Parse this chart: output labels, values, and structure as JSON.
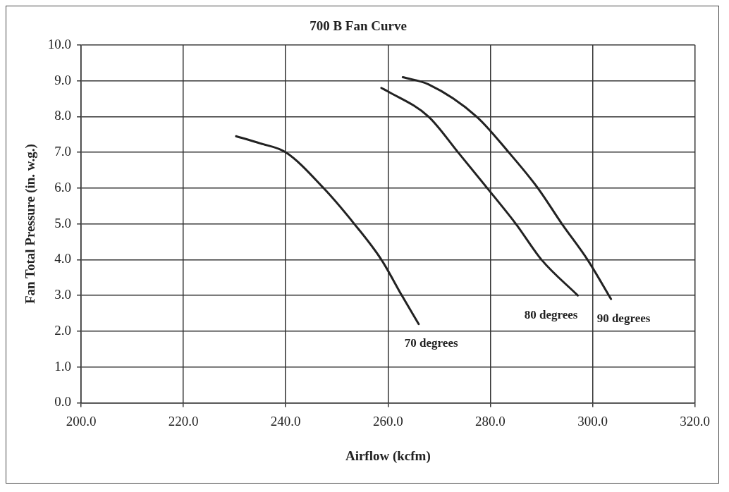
{
  "chart_data": {
    "type": "line",
    "title": "700 B Fan Curve",
    "xlabel": "Airflow (kcfm)",
    "ylabel": "Fan Total Pressure (in. w.g.)",
    "xlim": [
      200,
      320
    ],
    "xticks": [
      {
        "value": 200,
        "label": "200.0"
      },
      {
        "value": 220,
        "label": "220.0"
      },
      {
        "value": 240,
        "label": "240.0"
      },
      {
        "value": 260,
        "label": "260.0"
      },
      {
        "value": 280,
        "label": "280.0"
      },
      {
        "value": 300,
        "label": "300.0"
      },
      {
        "value": 320,
        "label": "320.0"
      }
    ],
    "ylim": [
      0,
      10
    ],
    "yticks": [
      {
        "value": 0,
        "label": "0.0"
      },
      {
        "value": 1,
        "label": "1.0"
      },
      {
        "value": 2,
        "label": "2.0"
      },
      {
        "value": 3,
        "label": "3.0"
      },
      {
        "value": 4,
        "label": "4.0"
      },
      {
        "value": 5,
        "label": "5.0"
      },
      {
        "value": 6,
        "label": "6.0"
      },
      {
        "value": 7,
        "label": "7.0"
      },
      {
        "value": 8,
        "label": "8.0"
      },
      {
        "value": 9,
        "label": "9.0"
      },
      {
        "value": 10,
        "label": "10.0"
      }
    ],
    "series": [
      {
        "name": "70 degrees",
        "color": "#222222",
        "x": [
          230.3,
          235,
          240,
          247.4,
          253.4,
          258.7,
          262.7,
          266.0
        ],
        "values": [
          7.45,
          7.25,
          7.0,
          6.0,
          5.0,
          4.0,
          3.0,
          2.2
        ]
      },
      {
        "name": "80 degrees",
        "color": "#222222",
        "x": [
          258.7,
          260,
          267.9,
          273.7,
          279.4,
          285.0,
          290.0,
          297.1
        ],
        "values": [
          8.8,
          8.7,
          8.0,
          7.0,
          6.0,
          5.0,
          4.0,
          3.0
        ]
      },
      {
        "name": "90 degrees",
        "color": "#222222",
        "x": [
          262.9,
          267.9,
          277.3,
          283.6,
          289.3,
          294.0,
          299.0,
          303.6
        ],
        "values": [
          9.1,
          8.9,
          8.0,
          7.0,
          6.0,
          5.0,
          4.0,
          2.9
        ]
      }
    ],
    "grid": true,
    "legend": false,
    "marker": "none",
    "line_style": "solid"
  }
}
